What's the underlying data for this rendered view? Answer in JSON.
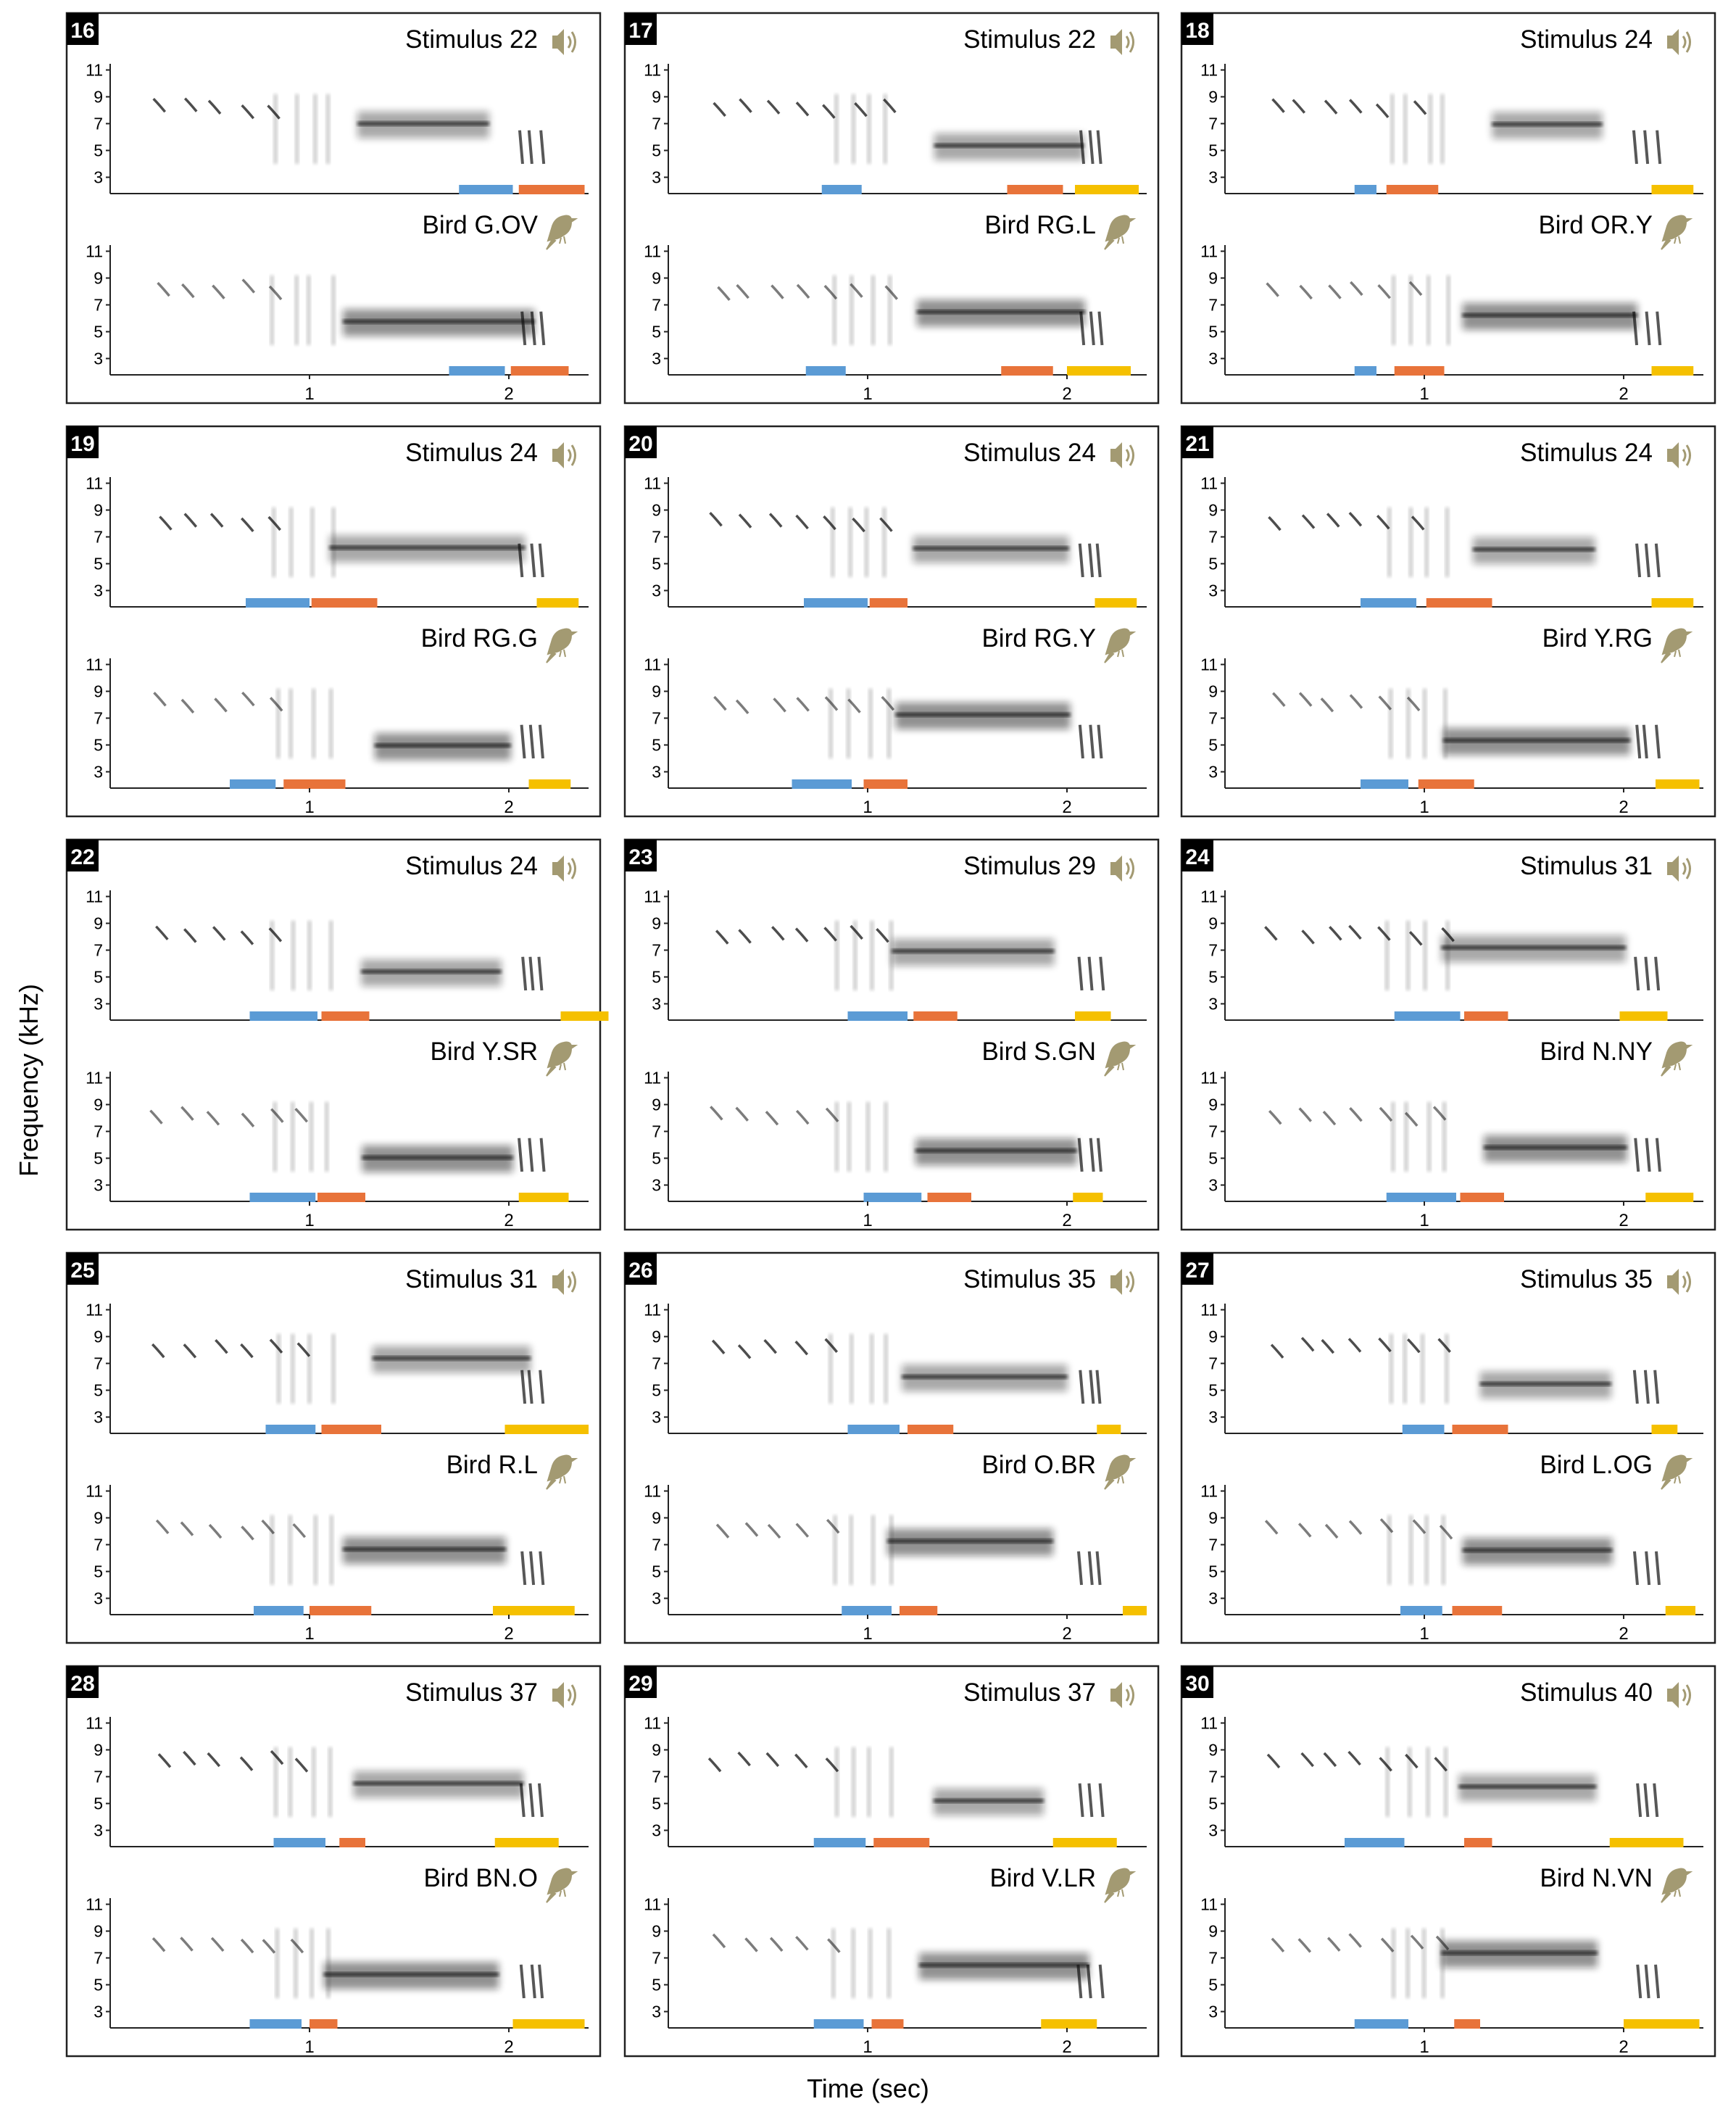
{
  "axis": {
    "ylabel": "Frequency (kHz)",
    "xlabel": "Time (sec)",
    "yticks": [
      "11",
      "9",
      "7",
      "5",
      "3"
    ],
    "xticks": [
      "1",
      "2"
    ]
  },
  "colors": {
    "blue": "#5b9bd5",
    "orange": "#e8733a",
    "yellow": "#f5c000",
    "icon": "#a39a72",
    "spectro": "#111111"
  },
  "icons": {
    "stimulus": "speaker-icon",
    "bird": "bird-icon"
  },
  "panels": [
    {
      "id": "16",
      "stimulus": "Stimulus 22",
      "bird": "Bird G.OV",
      "top_bars": [
        [
          "blue",
          1.75,
          2.02
        ],
        [
          "orange",
          2.05,
          2.38
        ]
      ],
      "bottom_bars": [
        [
          "blue",
          1.7,
          1.98
        ],
        [
          "orange",
          2.01,
          2.3
        ]
      ]
    },
    {
      "id": "17",
      "stimulus": "Stimulus 22",
      "bird": "Bird RG.L",
      "top_bars": [
        [
          "blue",
          0.77,
          0.97
        ],
        [
          "orange",
          1.7,
          1.98
        ],
        [
          "yellow",
          2.04,
          2.36
        ]
      ],
      "bottom_bars": [
        [
          "blue",
          0.69,
          0.89
        ],
        [
          "orange",
          1.67,
          1.93
        ],
        [
          "yellow",
          2.0,
          2.32
        ]
      ]
    },
    {
      "id": "18",
      "stimulus": "Stimulus 24",
      "bird": "Bird OR.Y",
      "top_bars": [
        [
          "blue",
          0.65,
          0.76
        ],
        [
          "orange",
          0.81,
          1.07
        ],
        [
          "yellow",
          2.14,
          2.35
        ]
      ],
      "bottom_bars": [
        [
          "blue",
          0.65,
          0.76
        ],
        [
          "orange",
          0.85,
          1.1
        ],
        [
          "yellow",
          2.14,
          2.35
        ]
      ]
    },
    {
      "id": "19",
      "stimulus": "Stimulus 24",
      "bird": "Bird RG.G",
      "top_bars": [
        [
          "blue",
          0.68,
          1.0
        ],
        [
          "orange",
          1.01,
          1.34
        ],
        [
          "yellow",
          2.14,
          2.35
        ]
      ],
      "bottom_bars": [
        [
          "blue",
          0.6,
          0.83
        ],
        [
          "orange",
          0.87,
          1.18
        ],
        [
          "yellow",
          2.1,
          2.31
        ]
      ]
    },
    {
      "id": "20",
      "stimulus": "Stimulus 24",
      "bird": "Bird RG.Y",
      "top_bars": [
        [
          "blue",
          0.68,
          1.0
        ],
        [
          "orange",
          1.01,
          1.2
        ],
        [
          "yellow",
          2.14,
          2.35
        ]
      ],
      "bottom_bars": [
        [
          "blue",
          0.62,
          0.92
        ],
        [
          "orange",
          0.98,
          1.2
        ]
      ]
    },
    {
      "id": "21",
      "stimulus": "Stimulus 24",
      "bird": "Bird Y.RG",
      "top_bars": [
        [
          "blue",
          0.68,
          0.96
        ],
        [
          "orange",
          1.01,
          1.34
        ],
        [
          "yellow",
          2.14,
          2.35
        ]
      ],
      "bottom_bars": [
        [
          "blue",
          0.68,
          0.92
        ],
        [
          "orange",
          0.97,
          1.25
        ],
        [
          "yellow",
          2.16,
          2.38
        ]
      ]
    },
    {
      "id": "22",
      "stimulus": "Stimulus 24",
      "bird": "Bird Y.SR",
      "top_bars": [
        [
          "blue",
          0.7,
          1.04
        ],
        [
          "orange",
          1.06,
          1.3
        ],
        [
          "yellow",
          2.26,
          2.5
        ]
      ],
      "bottom_bars": [
        [
          "blue",
          0.7,
          1.03
        ],
        [
          "orange",
          1.04,
          1.28
        ],
        [
          "yellow",
          2.05,
          2.3
        ]
      ]
    },
    {
      "id": "23",
      "stimulus": "Stimulus 29",
      "bird": "Bird S.GN",
      "top_bars": [
        [
          "blue",
          0.9,
          1.2
        ],
        [
          "orange",
          1.23,
          1.45
        ],
        [
          "yellow",
          2.04,
          2.22
        ]
      ],
      "bottom_bars": [
        [
          "blue",
          0.98,
          1.27
        ],
        [
          "orange",
          1.3,
          1.52
        ],
        [
          "yellow",
          2.03,
          2.18
        ]
      ]
    },
    {
      "id": "24",
      "stimulus": "Stimulus 31",
      "bird": "Bird N.NY",
      "top_bars": [
        [
          "blue",
          0.85,
          1.18
        ],
        [
          "orange",
          1.2,
          1.42
        ],
        [
          "yellow",
          1.98,
          2.22
        ]
      ],
      "bottom_bars": [
        [
          "blue",
          0.81,
          1.16
        ],
        [
          "orange",
          1.18,
          1.4
        ],
        [
          "yellow",
          2.11,
          2.35
        ]
      ]
    },
    {
      "id": "25",
      "stimulus": "Stimulus 31",
      "bird": "Bird R.L",
      "top_bars": [
        [
          "blue",
          0.78,
          1.03
        ],
        [
          "orange",
          1.06,
          1.36
        ],
        [
          "yellow",
          1.98,
          2.4
        ]
      ],
      "bottom_bars": [
        [
          "blue",
          0.72,
          0.97
        ],
        [
          "orange",
          1.0,
          1.31
        ],
        [
          "yellow",
          1.92,
          2.33
        ]
      ]
    },
    {
      "id": "26",
      "stimulus": "Stimulus 35",
      "bird": "Bird O.BR",
      "top_bars": [
        [
          "blue",
          0.9,
          1.16
        ],
        [
          "orange",
          1.2,
          1.43
        ],
        [
          "yellow",
          2.15,
          2.27
        ]
      ],
      "bottom_bars": [
        [
          "blue",
          0.87,
          1.12
        ],
        [
          "orange",
          1.16,
          1.35
        ],
        [
          "yellow",
          2.28,
          2.4
        ]
      ]
    },
    {
      "id": "27",
      "stimulus": "Stimulus 35",
      "bird": "Bird L.OG",
      "top_bars": [
        [
          "blue",
          0.89,
          1.1
        ],
        [
          "orange",
          1.14,
          1.42
        ],
        [
          "yellow",
          2.14,
          2.27
        ]
      ],
      "bottom_bars": [
        [
          "blue",
          0.88,
          1.09
        ],
        [
          "orange",
          1.14,
          1.39
        ],
        [
          "yellow",
          2.21,
          2.36
        ]
      ]
    },
    {
      "id": "28",
      "stimulus": "Stimulus 37",
      "bird": "Bird BN.O",
      "top_bars": [
        [
          "blue",
          0.82,
          1.08
        ],
        [
          "orange",
          1.15,
          1.28
        ],
        [
          "yellow",
          1.93,
          2.25
        ]
      ],
      "bottom_bars": [
        [
          "blue",
          0.7,
          0.96
        ],
        [
          "orange",
          1.0,
          1.14
        ],
        [
          "yellow",
          2.02,
          2.38
        ]
      ]
    },
    {
      "id": "29",
      "stimulus": "Stimulus 37",
      "bird": "Bird V.LR",
      "top_bars": [
        [
          "blue",
          0.73,
          0.99
        ],
        [
          "orange",
          1.03,
          1.31
        ],
        [
          "yellow",
          1.93,
          2.25
        ]
      ],
      "bottom_bars": [
        [
          "blue",
          0.73,
          0.98
        ],
        [
          "orange",
          1.02,
          1.18
        ],
        [
          "yellow",
          1.87,
          2.15
        ]
      ]
    },
    {
      "id": "30",
      "stimulus": "Stimulus 40",
      "bird": "Bird N.VN",
      "top_bars": [
        [
          "blue",
          0.6,
          0.9
        ],
        [
          "orange",
          1.2,
          1.34
        ],
        [
          "yellow",
          1.93,
          2.3
        ]
      ],
      "bottom_bars": [
        [
          "blue",
          0.65,
          0.92
        ],
        [
          "orange",
          1.15,
          1.28
        ],
        [
          "yellow",
          2.0,
          2.38
        ]
      ]
    }
  ],
  "chart_data": {
    "type": "table",
    "description_units": {
      "x": "Time (sec)",
      "y": "Frequency (kHz)"
    },
    "ylim": [
      2,
      12
    ],
    "xlim": [
      0,
      2.6
    ],
    "series_colors": [
      "blue",
      "orange",
      "yellow"
    ],
    "panels_ref": "panels"
  }
}
